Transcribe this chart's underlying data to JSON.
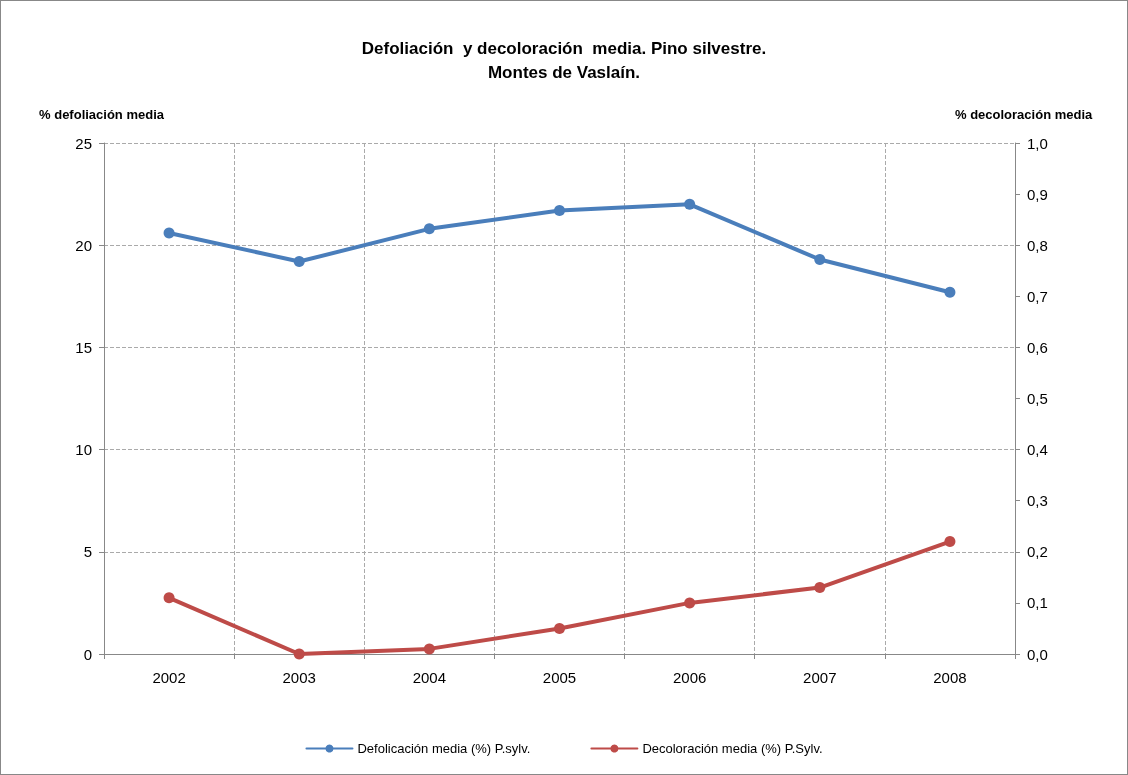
{
  "chart_data": {
    "type": "line",
    "title": "Defoliación  y decoloración  media. Pino silvestre.\nMontes de Vaslaín.",
    "ylabel": "% defoliación media",
    "y2label": "% decoloración media",
    "categories": [
      "2002",
      "2003",
      "2004",
      "2005",
      "2006",
      "2007",
      "2008"
    ],
    "series": [
      {
        "name": "Defolicación media (%) P.sylv.",
        "color": "#4a7ebb",
        "values": [
          20.6,
          19.2,
          20.8,
          21.7,
          22.0,
          19.3,
          17.7
        ]
      },
      {
        "name": "Decoloración media (%) P.Sylv.",
        "color": "#be4b48",
        "axis": "y2",
        "values": [
          0.11,
          0.0,
          0.01,
          0.05,
          0.1,
          0.13,
          0.22
        ]
      }
    ],
    "ylim": [
      0,
      25
    ],
    "yticks": [
      0,
      5,
      10,
      15,
      20,
      25
    ],
    "y2lim": [
      0,
      1
    ],
    "y2ticks": [
      {
        "value": 0,
        "label": "0,0"
      },
      {
        "value": 0.1,
        "label": "0,1"
      },
      {
        "value": 0.2,
        "label": "0,2"
      },
      {
        "value": 0.3,
        "label": "0,3"
      },
      {
        "value": 0.4,
        "label": "0,4"
      },
      {
        "value": 0.5,
        "label": "0,5"
      },
      {
        "value": 0.6,
        "label": "0,6"
      },
      {
        "value": 0.7,
        "label": "0,7"
      },
      {
        "value": 0.8,
        "label": "0,8"
      },
      {
        "value": 0.9,
        "label": "0,9"
      },
      {
        "value": 1,
        "label": "1,0"
      }
    ],
    "grid": true,
    "legend": "bottom",
    "marker": "circle",
    "line_style": "solid"
  }
}
